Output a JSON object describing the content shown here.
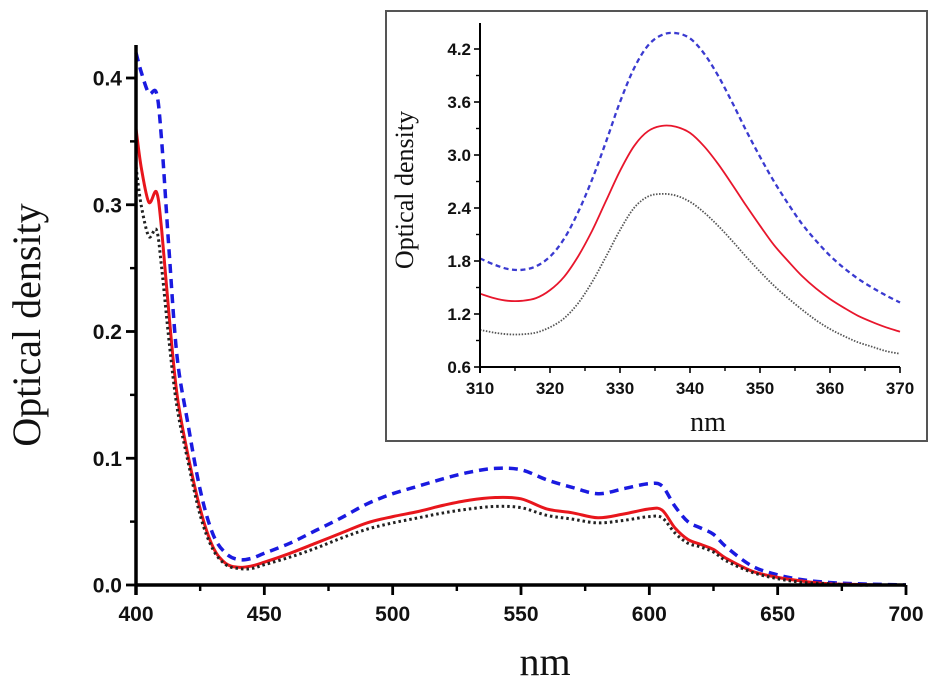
{
  "chart_data": [
    {
      "id": "main",
      "type": "line",
      "title": "",
      "xlabel": "nm",
      "ylabel": "Optical density",
      "xlim": [
        400,
        700
      ],
      "ylim": [
        0,
        0.44
      ],
      "xticks": [
        "400",
        "450",
        "500",
        "550",
        "600",
        "650",
        "700"
      ],
      "yticks": [
        "0.0",
        "0.1",
        "0.2",
        "0.3",
        "0.4"
      ],
      "grid": false,
      "legend": "none",
      "x": [
        400,
        402,
        405,
        408,
        410,
        413,
        416,
        420,
        425,
        430,
        435,
        440,
        445,
        450,
        460,
        470,
        480,
        490,
        500,
        510,
        520,
        530,
        540,
        550,
        560,
        570,
        580,
        590,
        600,
        605,
        610,
        615,
        620,
        625,
        630,
        640,
        650,
        660,
        670,
        680,
        690,
        700
      ],
      "series": [
        {
          "name": "series-blue-dashed",
          "color": "#1a1ae0",
          "style": "dashed",
          "values": [
            0.42,
            0.405,
            0.388,
            0.388,
            0.35,
            0.26,
            0.18,
            0.13,
            0.075,
            0.04,
            0.025,
            0.02,
            0.021,
            0.025,
            0.033,
            0.043,
            0.053,
            0.064,
            0.072,
            0.078,
            0.084,
            0.089,
            0.092,
            0.091,
            0.083,
            0.077,
            0.072,
            0.076,
            0.08,
            0.078,
            0.062,
            0.05,
            0.045,
            0.04,
            0.03,
            0.015,
            0.008,
            0.004,
            0.002,
            0.001,
            0.0005,
            0.0
          ]
        },
        {
          "name": "series-red-solid",
          "color": "#e8161c",
          "style": "solid",
          "values": [
            0.36,
            0.33,
            0.302,
            0.31,
            0.28,
            0.21,
            0.15,
            0.105,
            0.06,
            0.03,
            0.017,
            0.014,
            0.015,
            0.018,
            0.025,
            0.033,
            0.041,
            0.049,
            0.054,
            0.058,
            0.063,
            0.067,
            0.069,
            0.068,
            0.06,
            0.057,
            0.053,
            0.056,
            0.06,
            0.059,
            0.045,
            0.036,
            0.032,
            0.028,
            0.021,
            0.011,
            0.006,
            0.003,
            0.001,
            0.0005,
            0.0,
            0.0
          ]
        },
        {
          "name": "series-black-dotted",
          "color": "#222222",
          "style": "dotted",
          "values": [
            0.33,
            0.3,
            0.275,
            0.28,
            0.25,
            0.19,
            0.14,
            0.1,
            0.055,
            0.028,
            0.016,
            0.013,
            0.013,
            0.016,
            0.022,
            0.029,
            0.037,
            0.044,
            0.049,
            0.053,
            0.057,
            0.06,
            0.062,
            0.061,
            0.055,
            0.052,
            0.049,
            0.051,
            0.054,
            0.053,
            0.041,
            0.033,
            0.03,
            0.026,
            0.019,
            0.01,
            0.005,
            0.002,
            0.001,
            0.0,
            0.0,
            0.0
          ]
        }
      ]
    },
    {
      "id": "inset",
      "type": "line",
      "title": "",
      "xlabel": "nm",
      "ylabel": "Optical density",
      "xlim": [
        310,
        370
      ],
      "ylim": [
        0.6,
        4.5
      ],
      "xticks": [
        "310",
        "320",
        "330",
        "340",
        "350",
        "360",
        "370"
      ],
      "yticks": [
        "0.6",
        "1.2",
        "1.8",
        "2.4",
        "3.0",
        "3.6",
        "4.2"
      ],
      "grid": false,
      "legend": "none",
      "x": [
        310,
        312,
        314,
        316,
        318,
        320,
        322,
        324,
        326,
        328,
        330,
        332,
        334,
        336,
        338,
        340,
        342,
        344,
        346,
        348,
        350,
        352,
        354,
        356,
        358,
        360,
        362,
        364,
        366,
        368,
        370
      ],
      "series": [
        {
          "name": "series-blue-dashed",
          "color": "#3a3ad0",
          "style": "dashed",
          "values": [
            1.83,
            1.76,
            1.71,
            1.7,
            1.74,
            1.85,
            2.05,
            2.35,
            2.72,
            3.15,
            3.6,
            3.98,
            4.24,
            4.36,
            4.38,
            4.32,
            4.15,
            3.9,
            3.6,
            3.28,
            2.98,
            2.7,
            2.45,
            2.22,
            2.03,
            1.86,
            1.72,
            1.6,
            1.5,
            1.41,
            1.33
          ]
        },
        {
          "name": "series-red-solid",
          "color": "#e8162c",
          "style": "solid",
          "values": [
            1.43,
            1.38,
            1.35,
            1.35,
            1.38,
            1.47,
            1.62,
            1.85,
            2.14,
            2.48,
            2.82,
            3.1,
            3.27,
            3.33,
            3.32,
            3.25,
            3.1,
            2.9,
            2.67,
            2.43,
            2.2,
            1.98,
            1.8,
            1.63,
            1.49,
            1.37,
            1.27,
            1.18,
            1.11,
            1.05,
            1.0
          ]
        },
        {
          "name": "series-black-dotted",
          "color": "#555555",
          "style": "dotted",
          "values": [
            1.02,
            0.99,
            0.97,
            0.97,
            0.99,
            1.05,
            1.15,
            1.32,
            1.56,
            1.85,
            2.15,
            2.4,
            2.53,
            2.56,
            2.54,
            2.47,
            2.35,
            2.2,
            2.03,
            1.85,
            1.68,
            1.52,
            1.38,
            1.25,
            1.13,
            1.03,
            0.95,
            0.88,
            0.83,
            0.78,
            0.75
          ]
        }
      ]
    }
  ]
}
